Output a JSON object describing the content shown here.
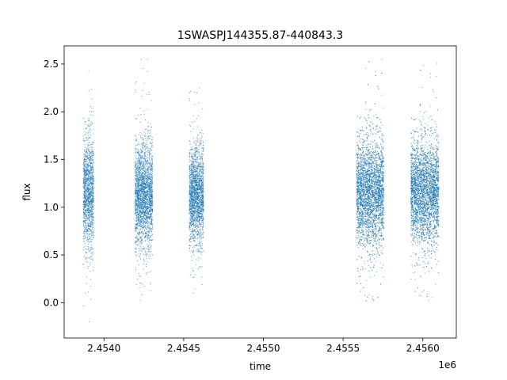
{
  "chart_data": {
    "type": "scatter",
    "title": "1SWASPJ144355.87-440843.3",
    "xlabel": "time",
    "ylabel": "flux",
    "x_offset_label": "1e6",
    "xlim": [
      2453750,
      2456210
    ],
    "ylim": [
      -0.37,
      2.69
    ],
    "xticks": [
      2454000,
      2454500,
      2455000,
      2455500,
      2456000
    ],
    "xtick_labels": [
      "2.4540",
      "2.4545",
      "2.4550",
      "2.4555",
      "2.4560"
    ],
    "yticks": [
      0.0,
      0.5,
      1.0,
      1.5,
      2.0,
      2.5
    ],
    "ytick_labels": [
      "0.0",
      "0.5",
      "1.0",
      "1.5",
      "2.0",
      "2.5"
    ],
    "grid": false,
    "legend": "none",
    "marker_color": "#1f77b4",
    "clusters": [
      {
        "x_start": 2453870,
        "x_end": 2453935,
        "y_center": 1.15,
        "y_spread": 0.28,
        "y_min": -0.22,
        "y_max": 2.5
      },
      {
        "x_start": 2454195,
        "x_end": 2454305,
        "y_center": 1.13,
        "y_spread": 0.26,
        "y_min": 0.0,
        "y_max": 2.55
      },
      {
        "x_start": 2454535,
        "x_end": 2454625,
        "y_center": 1.12,
        "y_spread": 0.24,
        "y_min": 0.1,
        "y_max": 2.38
      },
      {
        "x_start": 2455585,
        "x_end": 2455755,
        "y_center": 1.15,
        "y_spread": 0.27,
        "y_min": 0.0,
        "y_max": 2.55
      },
      {
        "x_start": 2455925,
        "x_end": 2456100,
        "y_center": 1.16,
        "y_spread": 0.26,
        "y_min": 0.0,
        "y_max": 2.53
      }
    ]
  }
}
